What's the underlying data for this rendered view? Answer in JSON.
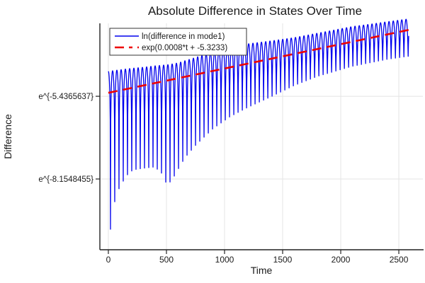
{
  "chart": {
    "title": "Absolute Difference in States Over Time",
    "xlabel": "Time",
    "ylabel": "Difference"
  },
  "chart_data": {
    "type": "line",
    "title": "Absolute Difference in States Over Time",
    "xlabel": "Time",
    "ylabel": "Difference",
    "x_axis": {
      "lim": [
        -73,
        2707
      ],
      "grid": true,
      "ticks": [
        {
          "value": 0,
          "label": "0"
        },
        {
          "value": 500,
          "label": "500"
        },
        {
          "value": 1000,
          "label": "1000"
        },
        {
          "value": 1500,
          "label": "1500"
        },
        {
          "value": 2000,
          "label": "2000"
        },
        {
          "value": 2500,
          "label": "2500"
        }
      ]
    },
    "y_axis": {
      "scale": "log-e",
      "lim_ln": [
        -10.48,
        -3.04
      ],
      "grid": true,
      "ticks": [
        {
          "ln_value": -5.4365637,
          "label": "e^{-5.4365637}"
        },
        {
          "ln_value": -8.1548455,
          "label": "e^{-8.1548455}"
        }
      ]
    },
    "legend": {
      "position": "top-left",
      "entries": [
        {
          "label": "ln(difference in mode1)",
          "color": "#0000ee",
          "dash": false
        },
        {
          "label": "exp(0.0008*t + -5.3233)",
          "color": "#ee0000",
          "dash": true
        }
      ]
    },
    "series": [
      {
        "name": "ln(difference in mode1)",
        "color": "#0000ee",
        "style": "solid",
        "model": "v(t) = ln( exp(U(t))*|sin(pi*(t-first_zero)/zero_spacing)| + exp(B(t)) )",
        "t_start": 0,
        "t_end": 2585,
        "zero_spacing": 36.6,
        "first_zero": 18.3,
        "upper_envelope_ln": [
          [
            0,
            -4.62
          ],
          [
            150,
            -4.57
          ],
          [
            300,
            -4.52
          ],
          [
            450,
            -4.45
          ],
          [
            600,
            -4.37
          ],
          [
            750,
            -4.22
          ],
          [
            900,
            -4.05
          ],
          [
            1100,
            -3.88
          ],
          [
            1250,
            -3.83
          ],
          [
            1400,
            -3.79
          ],
          [
            1600,
            -3.74
          ],
          [
            1800,
            -3.64
          ],
          [
            1950,
            -3.55
          ],
          [
            2100,
            -3.46
          ],
          [
            2250,
            -3.4
          ],
          [
            2400,
            -3.33
          ],
          [
            2585,
            -3.24
          ]
        ],
        "lower_envelope_ln": [
          [
            0,
            -10.4
          ],
          [
            37,
            -9.2
          ],
          [
            73,
            -8.6
          ],
          [
            110,
            -8.35
          ],
          [
            146,
            -8.1
          ],
          [
            183,
            -7.93
          ],
          [
            220,
            -7.85
          ],
          [
            300,
            -7.8
          ],
          [
            400,
            -7.76
          ],
          [
            460,
            -7.97
          ],
          [
            505,
            -8.35
          ],
          [
            550,
            -8.18
          ],
          [
            590,
            -7.9
          ],
          [
            660,
            -7.45
          ],
          [
            750,
            -7.05
          ],
          [
            900,
            -6.5
          ],
          [
            1050,
            -6.1
          ],
          [
            1200,
            -5.8
          ],
          [
            1400,
            -5.45
          ],
          [
            1600,
            -5.08
          ],
          [
            1800,
            -4.78
          ],
          [
            2100,
            -4.45
          ],
          [
            2400,
            -4.22
          ],
          [
            2585,
            -4.12
          ]
        ]
      },
      {
        "name": "exp(0.0008*t + -5.3233)",
        "color": "#ee0000",
        "style": "dash",
        "slope": 0.0008,
        "intercept": -5.3233,
        "t_start": 0,
        "t_end": 2585
      }
    ]
  }
}
